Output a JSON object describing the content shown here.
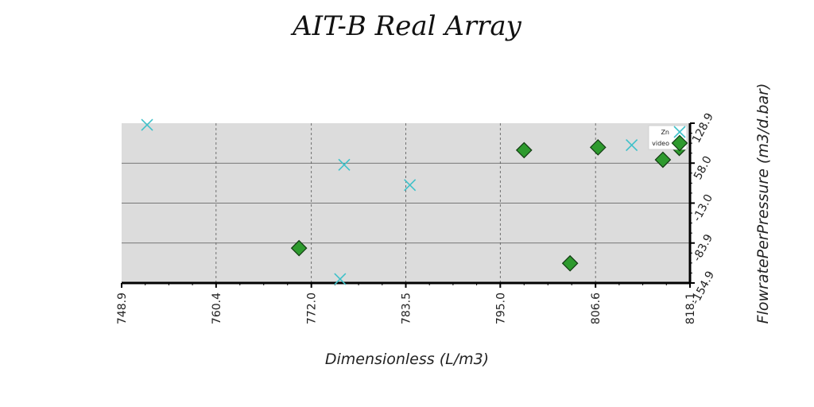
{
  "chart_data": {
    "type": "scatter",
    "title": "AIT-B Real Array",
    "xlabel": "Dimensionless (L/m3)",
    "ylabel": "FlowratePerPressure (m3/d.bar)",
    "xlim": [
      748.9,
      818.1
    ],
    "ylim": [
      -154.9,
      128.9
    ],
    "x_ticks": [
      "748.9",
      "760.4",
      "772.0",
      "783.5",
      "795.0",
      "806.6",
      "818.1"
    ],
    "y_ticks": [
      "-154.9",
      "-83.9",
      "-13.0",
      "58.0",
      "128.9"
    ],
    "grid": true,
    "legend_position": "top-right",
    "series": [
      {
        "name": "Zn",
        "marker": "x",
        "color": "#3fc1c9",
        "points": [
          {
            "x": 752.0,
            "y": 126.0
          },
          {
            "x": 776.0,
            "y": 55.0
          },
          {
            "x": 784.0,
            "y": 19.0
          },
          {
            "x": 775.5,
            "y": -148.0
          },
          {
            "x": 811.0,
            "y": 90.0
          }
        ]
      },
      {
        "name": "video",
        "marker": "diamond",
        "color": "#2e9a2e",
        "points": [
          {
            "x": 770.5,
            "y": -93.0
          },
          {
            "x": 797.9,
            "y": 81.0
          },
          {
            "x": 803.5,
            "y": -120.0
          },
          {
            "x": 806.9,
            "y": 86.0
          },
          {
            "x": 814.8,
            "y": 64.0
          },
          {
            "x": 816.8,
            "y": 85.0
          }
        ]
      }
    ]
  }
}
